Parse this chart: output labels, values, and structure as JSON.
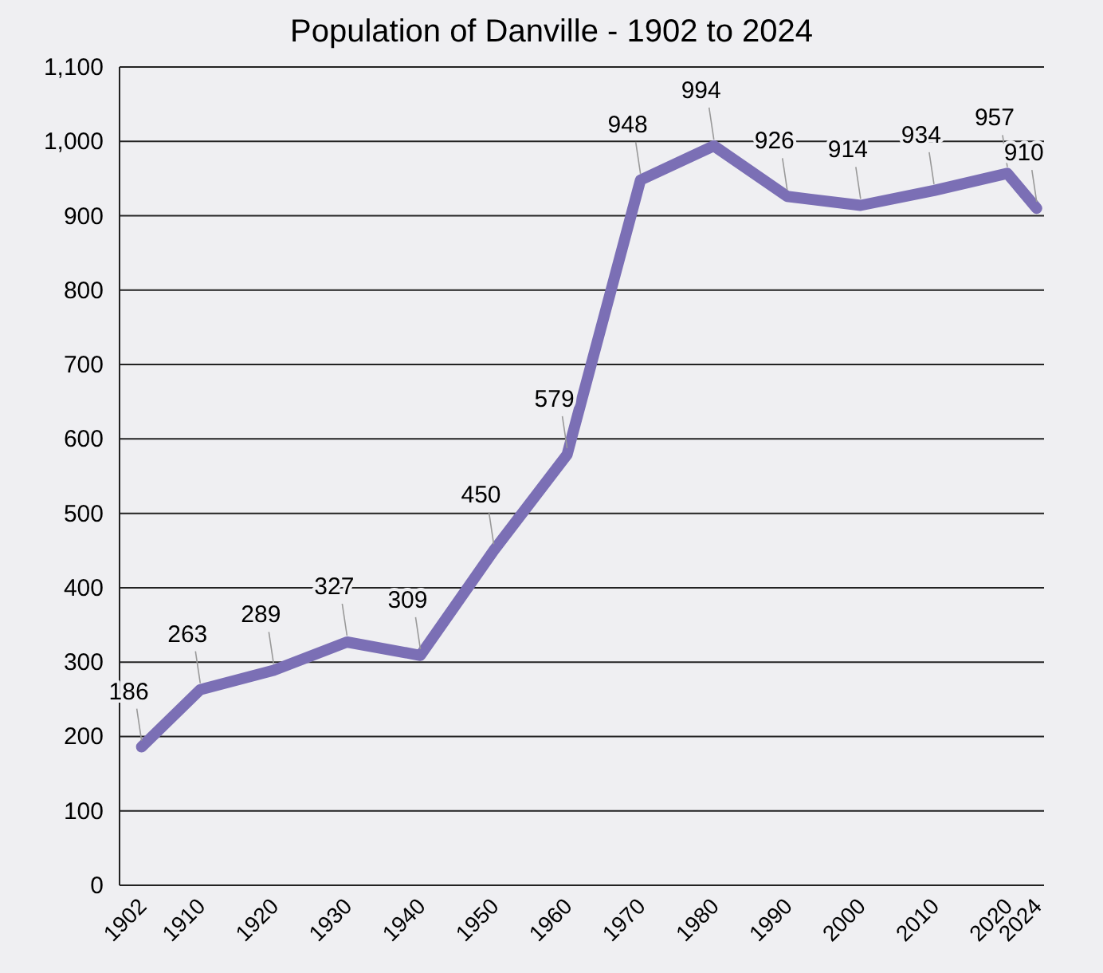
{
  "chart_data": {
    "type": "line",
    "title": "Population of Danville - 1902 to 2024",
    "x": [
      1902,
      1910,
      1920,
      1930,
      1940,
      1950,
      1960,
      1970,
      1980,
      1990,
      2000,
      2010,
      2020,
      2024
    ],
    "series": [
      {
        "color": "#7b6fb5",
        "values": [
          186,
          263,
          289,
          327,
          309,
          450,
          579,
          948,
          994,
          926,
          914,
          934,
          957,
          910
        ]
      }
    ],
    "xlim": [
      1899,
      2025
    ],
    "xticks": [
      1902,
      1910,
      1920,
      1930,
      1940,
      1950,
      1960,
      1970,
      1980,
      1990,
      2000,
      2010,
      2020,
      2024
    ],
    "ylim": [
      0,
      1100
    ],
    "yticks": [
      0,
      100,
      200,
      300,
      400,
      500,
      600,
      700,
      800,
      900,
      {
        "value": 1000,
        "label": "1,000"
      },
      {
        "value": 1100,
        "label": "1,100"
      }
    ],
    "grid": "y",
    "data_labels": true,
    "marker": "none",
    "line_style": "solid"
  }
}
